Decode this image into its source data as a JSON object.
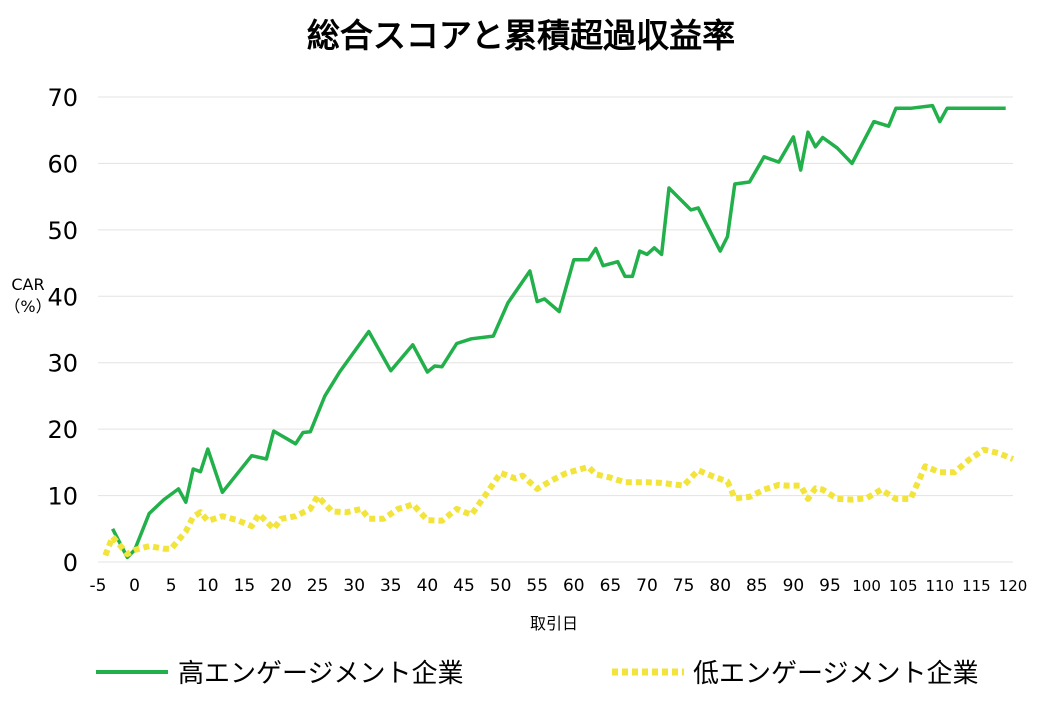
{
  "chart_data": {
    "type": "line",
    "title": "総合スコアと累積超過収益率",
    "ylabel": "CAR\n（%）",
    "xlabel": "取引日",
    "ylim": [
      0,
      70
    ],
    "xlim": [
      -5,
      120
    ],
    "yticks": [
      0,
      10,
      20,
      30,
      40,
      50,
      60,
      70
    ],
    "xticks": [
      -5,
      0,
      5,
      10,
      15,
      20,
      25,
      30,
      35,
      40,
      45,
      50,
      55,
      60,
      65,
      70,
      75,
      80,
      85,
      90,
      95,
      100,
      105,
      110,
      115,
      120
    ],
    "grid": true,
    "legend_position": "bottom",
    "series": [
      {
        "name": "高エンゲージメント企業",
        "color": "#22b04b",
        "style": "solid",
        "x": [
          -3,
          -1,
          0,
          2,
          4,
          6,
          7,
          8,
          9,
          10,
          12,
          16,
          18,
          19,
          22,
          23,
          24,
          26,
          28,
          32,
          35,
          38,
          40,
          41,
          42,
          44,
          46,
          49,
          51,
          54,
          55,
          56,
          58,
          60,
          62,
          63,
          64,
          66,
          67,
          68,
          69,
          70,
          71,
          72,
          73,
          76,
          77,
          80,
          81,
          82,
          84,
          86,
          88,
          90,
          91,
          92,
          93,
          94,
          96,
          98,
          101,
          103,
          104,
          106,
          109,
          110,
          111,
          112,
          113,
          114,
          115,
          117,
          118,
          119
        ],
        "y": [
          5,
          0.7,
          1.8,
          7.3,
          9.4,
          11,
          9,
          14,
          13.6,
          17,
          10.5,
          16,
          15.5,
          19.7,
          17.8,
          19.5,
          19.6,
          25,
          28.6,
          34.7,
          28.8,
          32.7,
          28.6,
          29.5,
          29.4,
          32.9,
          33.6,
          34,
          39,
          43.8,
          39.2,
          39.6,
          37.7,
          45.5,
          45.5,
          47.2,
          44.6,
          45.2,
          43,
          43,
          46.8,
          46.3,
          47.3,
          46.3,
          56.3,
          53,
          53.3,
          46.8,
          49,
          56.9,
          57.2,
          61,
          60.2,
          64,
          59,
          64.7,
          62.5,
          63.9,
          62.3,
          60,
          66.3,
          65.6,
          68.3,
          68.3,
          68.7,
          66.3,
          68.3,
          68.3,
          68.3,
          68.3,
          68.3,
          68.3,
          68.3,
          68.3
        ]
      },
      {
        "name": "低エンゲージメント企業",
        "color": "#f2e43a",
        "style": "dotted",
        "x": [
          -4,
          -3,
          -2,
          -1,
          0,
          2,
          4,
          5,
          7,
          8,
          9,
          10,
          12,
          14,
          16,
          17,
          19,
          20,
          22,
          24,
          25,
          27,
          29,
          31,
          32,
          34,
          36,
          37,
          38,
          40,
          42,
          44,
          46,
          48,
          50,
          52,
          53,
          55,
          57,
          59,
          62,
          63,
          65,
          67,
          70,
          72,
          75,
          77,
          79,
          81,
          82,
          84,
          86,
          88,
          89,
          91,
          92,
          93,
          94,
          96,
          98,
          100,
          102,
          104,
          106,
          108,
          110,
          112,
          114,
          116,
          118,
          120
        ],
        "y": [
          1,
          3.8,
          2.5,
          1.2,
          1.8,
          2.4,
          2,
          2,
          4.6,
          6.8,
          7.5,
          6.2,
          6.9,
          6.3,
          5.4,
          7.2,
          5,
          6.5,
          6.9,
          8,
          9.9,
          7.6,
          7.5,
          8,
          6.5,
          6.5,
          8,
          8.3,
          8.7,
          6.3,
          6.2,
          8,
          7.1,
          10.2,
          13.4,
          12.6,
          13,
          11,
          12.3,
          13.4,
          14.3,
          13.2,
          12.7,
          12,
          12,
          11.9,
          11.5,
          13.8,
          12.9,
          12.1,
          9.6,
          9.8,
          10.9,
          11.6,
          11.5,
          11.5,
          9.5,
          11.1,
          10.9,
          9.5,
          9.4,
          9.6,
          10.9,
          9.5,
          9.5,
          14.4,
          13.5,
          13.5,
          15.4,
          16.9,
          16.4,
          15.5
        ]
      }
    ]
  }
}
